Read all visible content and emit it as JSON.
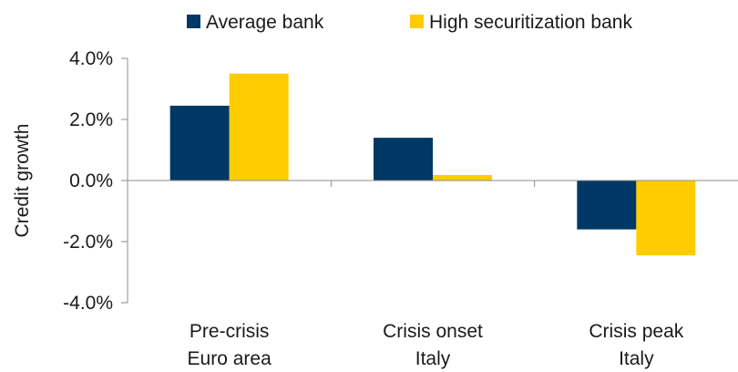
{
  "chart_data": {
    "type": "bar",
    "title": "",
    "xlabel": "",
    "ylabel": "Credit growth",
    "ylim": [
      -4.0,
      4.0
    ],
    "yticks": [
      "4.0%",
      "2.0%",
      "0.0%",
      "-2.0%",
      "-4.0%"
    ],
    "ytick_values": [
      4.0,
      2.0,
      0.0,
      -2.0,
      -4.0
    ],
    "categories": [
      [
        "Pre-crisis",
        "Euro area"
      ],
      [
        "Crisis onset",
        "Italy"
      ],
      [
        "Crisis peak",
        "Italy"
      ]
    ],
    "series": [
      {
        "name": "Average bank",
        "color": "#003865",
        "values": [
          2.45,
          1.4,
          -1.6
        ]
      },
      {
        "name": "High securitization bank",
        "color": "#FFCC00",
        "values": [
          3.5,
          0.18,
          -2.45
        ]
      }
    ],
    "legend_position": "top",
    "grid": false
  }
}
